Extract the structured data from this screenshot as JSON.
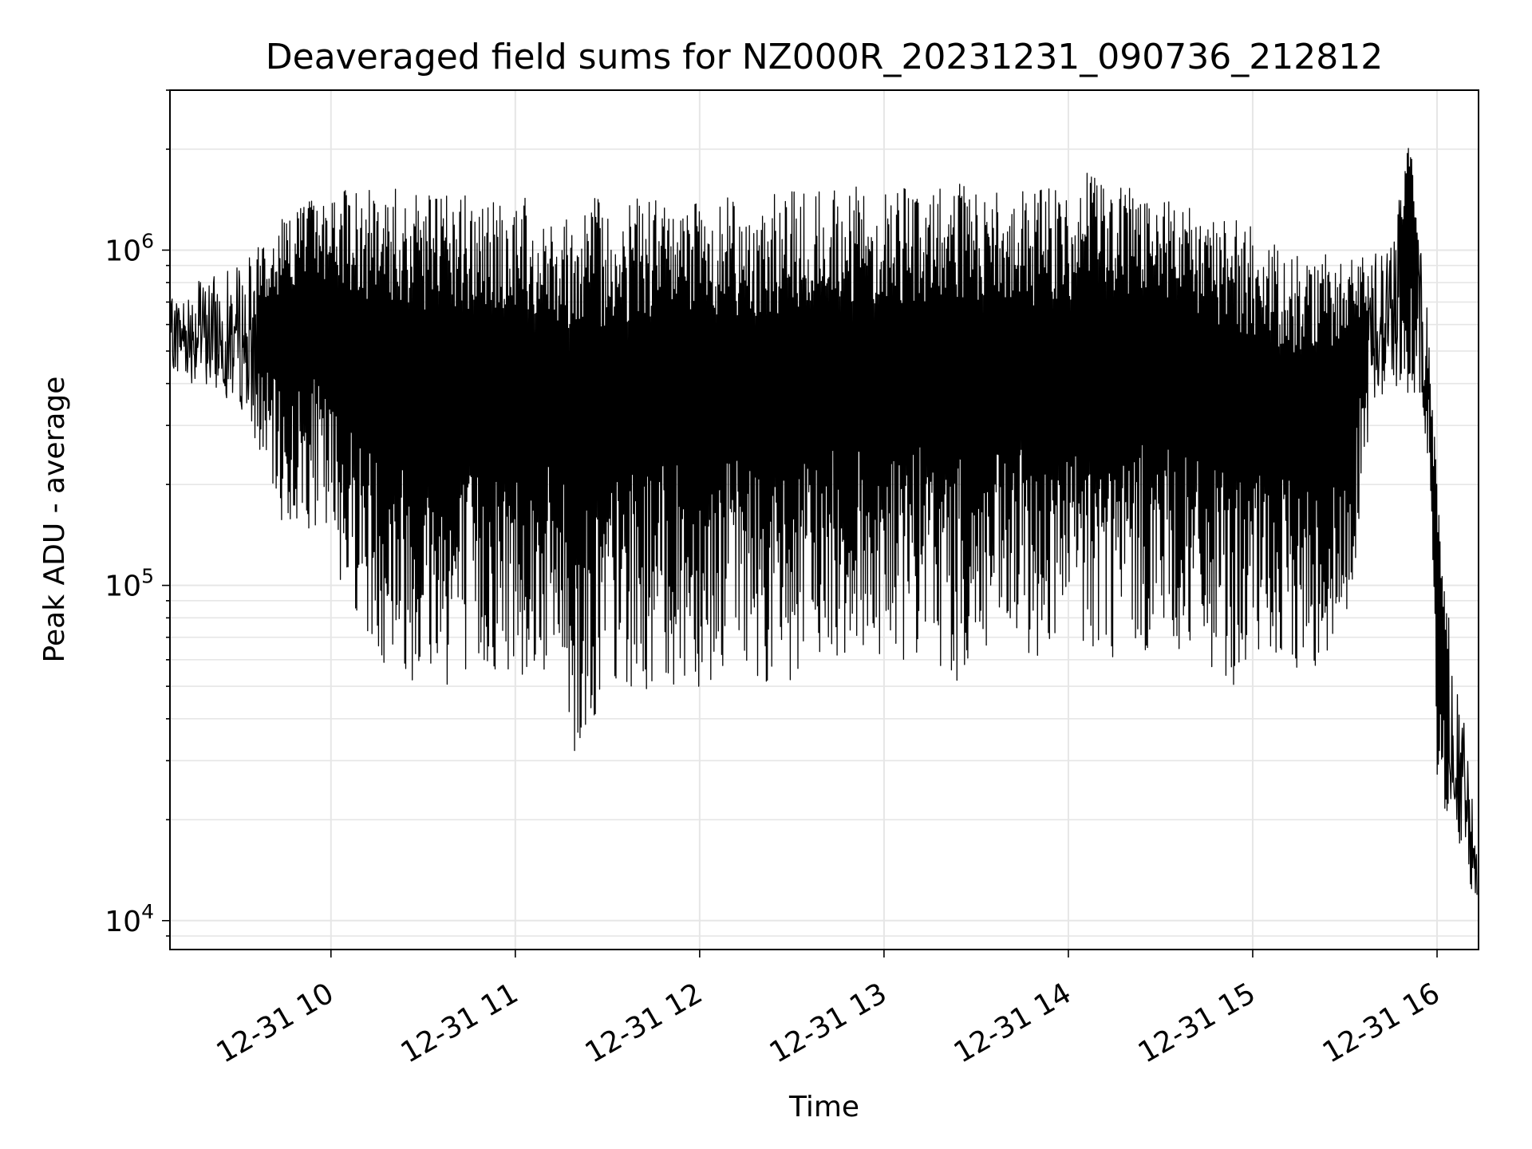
{
  "chart_data": {
    "type": "line",
    "title": "Deaveraged field sums for NZ000R_20231231_090736_212812",
    "xlabel": "Time",
    "ylabel": "Peak ADU - average",
    "yscale": "log",
    "xlim": [
      "2023-12-31 09:07:36",
      "2023-12-31 16:13:30"
    ],
    "ylim": [
      8200,
      3000000
    ],
    "grid": true,
    "grid_minor": true,
    "line_color": "#000000",
    "grid_color": "#e6e6e6",
    "xticks": [
      {
        "value": "2023-12-31 10:00",
        "label": "12-31 10"
      },
      {
        "value": "2023-12-31 11:00",
        "label": "12-31 11"
      },
      {
        "value": "2023-12-31 12:00",
        "label": "12-31 12"
      },
      {
        "value": "2023-12-31 13:00",
        "label": "12-31 13"
      },
      {
        "value": "2023-12-31 14:00",
        "label": "12-31 14"
      },
      {
        "value": "2023-12-31 15:00",
        "label": "12-31 15"
      },
      {
        "value": "2023-12-31 16:00",
        "label": "12-31 16"
      }
    ],
    "yticks": [
      {
        "value": 10000,
        "base": "10",
        "exp": "4"
      },
      {
        "value": 100000,
        "base": "10",
        "exp": "5"
      },
      {
        "value": 1000000,
        "base": "10",
        "exp": "6"
      }
    ],
    "series": [
      {
        "style": "dense oscillating line; sampled envelope",
        "x": [
          "2023-12-31 09:07",
          "2023-12-31 09:15",
          "2023-12-31 09:30",
          "2023-12-31 09:40",
          "2023-12-31 09:45",
          "2023-12-31 09:55",
          "2023-12-31 10:00",
          "2023-12-31 10:15",
          "2023-12-31 10:30",
          "2023-12-31 10:45",
          "2023-12-31 11:00",
          "2023-12-31 11:15",
          "2023-12-31 11:20",
          "2023-12-31 11:30",
          "2023-12-31 11:45",
          "2023-12-31 12:00",
          "2023-12-31 12:15",
          "2023-12-31 12:25",
          "2023-12-31 12:30",
          "2023-12-31 12:45",
          "2023-12-31 13:00",
          "2023-12-31 13:15",
          "2023-12-31 13:25",
          "2023-12-31 13:30",
          "2023-12-31 13:45",
          "2023-12-31 14:00",
          "2023-12-31 14:10",
          "2023-12-31 14:15",
          "2023-12-31 14:30",
          "2023-12-31 14:45",
          "2023-12-31 14:55",
          "2023-12-31 15:00",
          "2023-12-31 15:15",
          "2023-12-31 15:30",
          "2023-12-31 15:38",
          "2023-12-31 15:45",
          "2023-12-31 15:52",
          "2023-12-31 15:55",
          "2023-12-31 15:57",
          "2023-12-31 16:00",
          "2023-12-31 16:05",
          "2023-12-31 16:10",
          "2023-12-31 16:13"
        ],
        "y_upper": [
          700000,
          800000,
          900000,
          1100000,
          1300000,
          1450000,
          1500000,
          1550000,
          1500000,
          1450000,
          1450000,
          1400000,
          1500000,
          1400000,
          1450000,
          1500000,
          1400000,
          1500000,
          1500000,
          1550000,
          1550000,
          1550000,
          1600000,
          1500000,
          1500000,
          1550000,
          1800000,
          1600000,
          1500000,
          1300000,
          1250000,
          1200000,
          1000000,
          1000000,
          1000000,
          1100000,
          2400000,
          1000000,
          700000,
          200000,
          60000,
          35000,
          15000
        ],
        "y_lower": [
          450000,
          400000,
          350000,
          200000,
          140000,
          150000,
          120000,
          60000,
          50000,
          50000,
          55000,
          50000,
          28000,
          45000,
          50000,
          50000,
          60000,
          45000,
          50000,
          60000,
          60000,
          60000,
          50000,
          55000,
          60000,
          60000,
          60000,
          60000,
          65000,
          55000,
          50000,
          55000,
          55000,
          60000,
          300000,
          400000,
          350000,
          350000,
          200000,
          25000,
          18000,
          13000,
          11000
        ]
      }
    ]
  }
}
